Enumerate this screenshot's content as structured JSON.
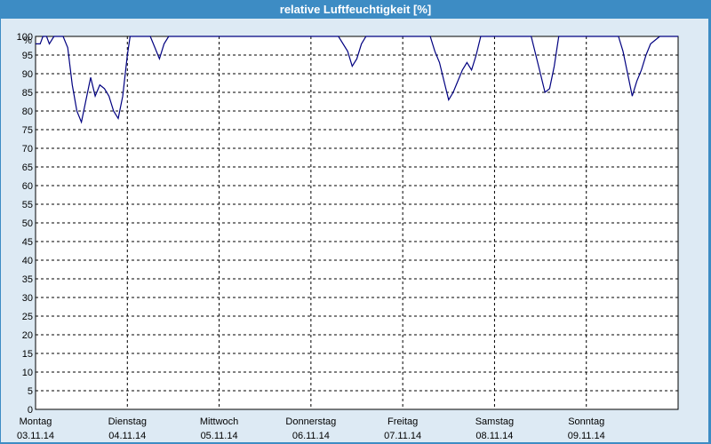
{
  "window": {
    "title": "relative Luftfeuchtigkeit [%]"
  },
  "chart_data": {
    "type": "line",
    "title": "relative Luftfeuchtigkeit [%]",
    "ylabel": "%",
    "xlabel": "",
    "ylim": [
      0,
      100
    ],
    "yticks": [
      0,
      5,
      10,
      15,
      20,
      25,
      30,
      35,
      40,
      45,
      50,
      55,
      60,
      65,
      70,
      75,
      80,
      85,
      90,
      95,
      100
    ],
    "xlim": [
      0,
      7
    ],
    "grid": true,
    "line_color": "#000080",
    "x_labels": [
      {
        "day": "Montag",
        "date": "03.11.14"
      },
      {
        "day": "Dienstag",
        "date": "04.11.14"
      },
      {
        "day": "Mittwoch",
        "date": "05.11.14"
      },
      {
        "day": "Donnerstag",
        "date": "06.11.14"
      },
      {
        "day": "Freitag",
        "date": "07.11.14"
      },
      {
        "day": "Samstag",
        "date": "08.11.14"
      },
      {
        "day": "Sonntag",
        "date": "09.11.14"
      }
    ],
    "series": [
      {
        "x": [
          0,
          0.05,
          0.08,
          0.12,
          0.15,
          0.2,
          0.25,
          0.3,
          0.35,
          0.4,
          0.45,
          0.5,
          0.55,
          0.6,
          0.65,
          0.7,
          0.75,
          0.8,
          0.85,
          0.9,
          0.95,
          1.0,
          1.03,
          1.07,
          1.1,
          1.15,
          1.2,
          1.25,
          1.3,
          1.35,
          1.4,
          1.45,
          1.5,
          1.55,
          1.6,
          1.65,
          1.7,
          1.75,
          1.8,
          1.85,
          1.9,
          2.0,
          2.5,
          3.0,
          3.3,
          3.4,
          3.45,
          3.5,
          3.55,
          3.6,
          3.65,
          3.7,
          3.8,
          4.0,
          4.3,
          4.35,
          4.4,
          4.45,
          4.5,
          4.55,
          4.6,
          4.65,
          4.7,
          4.75,
          4.8,
          4.85,
          4.9,
          4.95,
          5.0,
          5.3,
          5.4,
          5.45,
          5.5,
          5.55,
          5.6,
          5.65,
          5.7,
          5.75,
          5.8,
          5.9,
          6.0,
          6.3,
          6.35,
          6.4,
          6.45,
          6.5,
          6.55,
          6.6,
          6.65,
          6.7,
          6.8,
          7.0
        ],
        "y": [
          98,
          98,
          100,
          100,
          98,
          100,
          100,
          100,
          97,
          87,
          80,
          77,
          83,
          89,
          84,
          87,
          86,
          84,
          80,
          78,
          84,
          95,
          100,
          100,
          100,
          100,
          100,
          100,
          97,
          94,
          98,
          100,
          100,
          100,
          100,
          100,
          100,
          100,
          100,
          100,
          100,
          100,
          100,
          100,
          100,
          96,
          92,
          94,
          98,
          100,
          100,
          100,
          100,
          100,
          100,
          96,
          93,
          88,
          83,
          85,
          88,
          91,
          93,
          91,
          95,
          100,
          100,
          100,
          100,
          100,
          100,
          95,
          90,
          85,
          86,
          92,
          100,
          100,
          100,
          100,
          100,
          100,
          100,
          96,
          90,
          84,
          88,
          91,
          95,
          98,
          100,
          100
        ]
      }
    ]
  }
}
